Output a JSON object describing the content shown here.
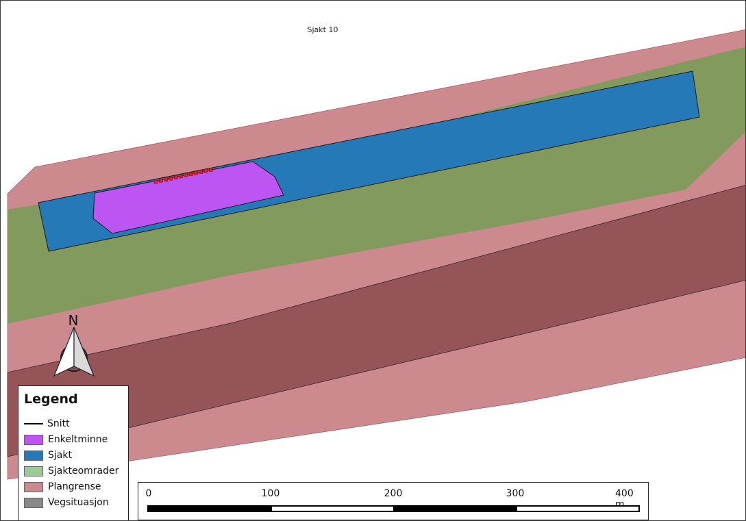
{
  "map": {
    "title": "Sjakt 10",
    "colors": {
      "plangrense": "#cc8a8f",
      "vegsituasjon": "#945458",
      "sjakteomrader": "#839a5e",
      "sjakt": "#2579b6",
      "enkeltminne": "#bd55f2",
      "point_marker": "#e02020"
    }
  },
  "north_arrow": {
    "label": "N",
    "icon": "north-arrow-icon"
  },
  "legend": {
    "title": "Legend",
    "items": [
      {
        "label": "Snitt",
        "kind": "line",
        "color": "#000000"
      },
      {
        "label": "Enkeltminne",
        "kind": "fill",
        "color": "#bd55f2"
      },
      {
        "label": "Sjakt",
        "kind": "fill",
        "color": "#2579b6"
      },
      {
        "label": "Sjakteomrader",
        "kind": "fill",
        "color": "#9acb94"
      },
      {
        "label": "Plangrense",
        "kind": "fill",
        "color": "#cc8a8f"
      },
      {
        "label": "Vegsituasjon",
        "kind": "fill",
        "color": "#888888"
      }
    ]
  },
  "scale": {
    "labels": [
      "0",
      "100",
      "200",
      "300",
      "400 m"
    ],
    "unit": "m"
  }
}
